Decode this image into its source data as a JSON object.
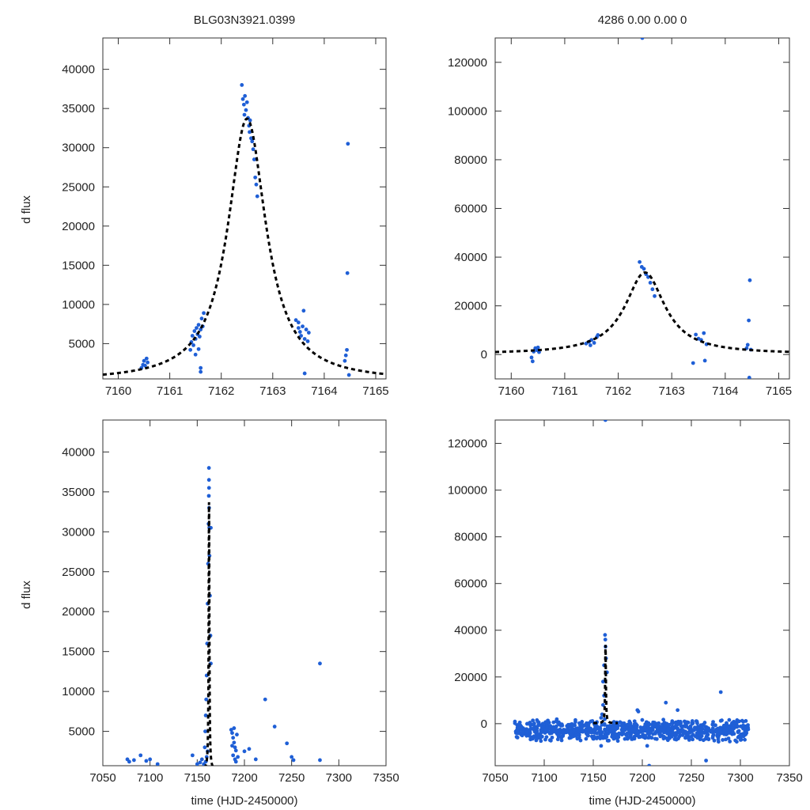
{
  "chart_data": [
    {
      "id": "top_left",
      "type": "scatter",
      "title": "BLG03N3921.0399",
      "xlabel": "",
      "ylabel": "d flux",
      "xlim": [
        7159.7,
        7165.2
      ],
      "ylim": [
        500,
        44000
      ],
      "xticks": [
        7160,
        7161,
        7162,
        7163,
        7164,
        7165
      ],
      "yticks": [
        5000,
        10000,
        15000,
        20000,
        25000,
        30000,
        35000,
        40000
      ],
      "series": [
        {
          "name": "data",
          "color": "#1f5fd6",
          "points": [
            [
              7160.45,
              1900
            ],
            [
              7160.48,
              2300
            ],
            [
              7160.5,
              2800
            ],
            [
              7160.52,
              2200
            ],
            [
              7160.55,
              3100
            ],
            [
              7160.57,
              2600
            ],
            [
              7161.4,
              4200
            ],
            [
              7161.42,
              5200
            ],
            [
              7161.44,
              6000
            ],
            [
              7161.46,
              4800
            ],
            [
              7161.48,
              6600
            ],
            [
              7161.5,
              5600
            ],
            [
              7161.52,
              7000
            ],
            [
              7161.54,
              6200
            ],
            [
              7161.56,
              7400
            ],
            [
              7161.58,
              5900
            ],
            [
              7161.6,
              6800
            ],
            [
              7161.62,
              8200
            ],
            [
              7161.64,
              7200
            ],
            [
              7161.66,
              8900
            ],
            [
              7161.5,
              3600
            ],
            [
              7161.56,
              4300
            ],
            [
              7161.6,
              1900
            ],
            [
              7161.6,
              1400
            ],
            [
              7162.4,
              38000
            ],
            [
              7162.42,
              36200
            ],
            [
              7162.44,
              35500
            ],
            [
              7162.46,
              36600
            ],
            [
              7162.48,
              34800
            ],
            [
              7162.5,
              35800
            ],
            [
              7162.52,
              33800
            ],
            [
              7162.54,
              32800
            ],
            [
              7162.56,
              33500
            ],
            [
              7162.58,
              31200
            ],
            [
              7162.6,
              30800
            ],
            [
              7162.62,
              29800
            ],
            [
              7162.64,
              28500
            ],
            [
              7162.66,
              26200
            ],
            [
              7162.68,
              25300
            ],
            [
              7162.7,
              23800
            ],
            [
              7162.45,
              34200
            ],
            [
              7162.55,
              32000
            ],
            [
              7163.45,
              8000
            ],
            [
              7163.5,
              7000
            ],
            [
              7163.53,
              6500
            ],
            [
              7163.55,
              6000
            ],
            [
              7163.58,
              7200
            ],
            [
              7163.6,
              9200
            ],
            [
              7163.62,
              5600
            ],
            [
              7163.65,
              6800
            ],
            [
              7163.68,
              5300
            ],
            [
              7163.7,
              6400
            ],
            [
              7163.62,
              1200
            ],
            [
              7163.5,
              7700
            ],
            [
              7164.4,
              2800
            ],
            [
              7164.42,
              3500
            ],
            [
              7164.44,
              4200
            ],
            [
              7164.45,
              14000
            ],
            [
              7164.46,
              30500
            ],
            [
              7164.48,
              1000
            ]
          ]
        },
        {
          "name": "model",
          "style": "dashed",
          "color": "#000000",
          "model": {
            "t0": 7162.5,
            "peak": 33500,
            "tE": 0.45,
            "base": 200,
            "from": 7159.7,
            "to": 7165.2
          }
        }
      ]
    },
    {
      "id": "top_right",
      "type": "scatter",
      "title": "4286  0.00  0.00  0",
      "xlabel": "",
      "ylabel": "",
      "xlim": [
        7159.7,
        7165.2
      ],
      "ylim": [
        -10000,
        130000
      ],
      "xticks": [
        7160,
        7161,
        7162,
        7163,
        7164,
        7165
      ],
      "yticks": [
        0,
        20000,
        40000,
        60000,
        80000,
        100000,
        120000
      ],
      "series": [
        {
          "name": "data",
          "color": "#1f5fd6",
          "points": [
            [
              7160.38,
              -1200
            ],
            [
              7160.4,
              -2800
            ],
            [
              7160.42,
              1200
            ],
            [
              7160.45,
              2600
            ],
            [
              7160.48,
              1800
            ],
            [
              7160.5,
              2900
            ],
            [
              7160.52,
              1000
            ],
            [
              7161.4,
              4500
            ],
            [
              7161.45,
              5200
            ],
            [
              7161.5,
              6000
            ],
            [
              7161.55,
              4800
            ],
            [
              7161.6,
              7200
            ],
            [
              7161.62,
              8000
            ],
            [
              7161.48,
              3800
            ],
            [
              7162.4,
              38000
            ],
            [
              7162.44,
              36000
            ],
            [
              7162.48,
              35200
            ],
            [
              7162.52,
              33000
            ],
            [
              7162.56,
              31800
            ],
            [
              7162.6,
              29500
            ],
            [
              7162.64,
              26800
            ],
            [
              7162.68,
              24000
            ],
            [
              7163.4,
              -3500
            ],
            [
              7163.45,
              8200
            ],
            [
              7163.5,
              6500
            ],
            [
              7163.55,
              6000
            ],
            [
              7163.6,
              8800
            ],
            [
              7163.65,
              4200
            ],
            [
              7163.62,
              -2500
            ],
            [
              7164.4,
              2600
            ],
            [
              7164.42,
              4000
            ],
            [
              7164.44,
              14000
            ],
            [
              7164.46,
              30500
            ],
            [
              7164.45,
              -9500
            ],
            [
              7164.48,
              2000
            ],
            [
              7162.45,
              130000
            ]
          ]
        },
        {
          "name": "model",
          "style": "dashed",
          "color": "#000000",
          "model": {
            "t0": 7162.5,
            "peak": 33500,
            "tE": 0.45,
            "base": 200,
            "from": 7159.7,
            "to": 7165.2
          }
        }
      ]
    },
    {
      "id": "bottom_left",
      "type": "scatter",
      "title": "",
      "xlabel": "time (HJD-2450000)",
      "ylabel": "d flux",
      "xlim": [
        7050,
        7350
      ],
      "ylim": [
        700,
        44000
      ],
      "xticks": [
        7050,
        7100,
        7150,
        7200,
        7250,
        7300,
        7350
      ],
      "yticks": [
        5000,
        10000,
        15000,
        20000,
        25000,
        30000,
        35000,
        40000
      ],
      "series": [
        {
          "name": "data",
          "color": "#1f5fd6",
          "points": [
            [
              7076,
              1500
            ],
            [
              7078,
              1200
            ],
            [
              7083,
              1400
            ],
            [
              7090,
              2000
            ],
            [
              7096,
              1300
            ],
            [
              7100,
              1500
            ],
            [
              7108,
              900
            ],
            [
              7145,
              2000
            ],
            [
              7150,
              900
            ],
            [
              7153,
              1100
            ],
            [
              7155,
              1500
            ],
            [
              7158,
              3000
            ],
            [
              7158.5,
              5000
            ],
            [
              7159,
              7000
            ],
            [
              7159.5,
              9000
            ],
            [
              7160,
              12000
            ],
            [
              7160.5,
              16000
            ],
            [
              7161,
              21000
            ],
            [
              7161.5,
              26000
            ],
            [
              7162,
              31000
            ],
            [
              7162.3,
              34500
            ],
            [
              7162.4,
              38000
            ],
            [
              7162.45,
              36500
            ],
            [
              7162.5,
              35500
            ],
            [
              7162.6,
              33000
            ],
            [
              7162.8,
              30500
            ],
            [
              7163,
              27000
            ],
            [
              7163.5,
              22000
            ],
            [
              7164,
              17000
            ],
            [
              7164.4,
              30500
            ],
            [
              7164.4,
              13500
            ],
            [
              7161,
              2500
            ],
            [
              7160,
              1800
            ],
            [
              7159,
              1200
            ],
            [
              7157,
              900
            ],
            [
              7186,
              5200
            ],
            [
              7187,
              4800
            ],
            [
              7188,
              4200
            ],
            [
              7189,
              3600
            ],
            [
              7190,
              3000
            ],
            [
              7191,
              2600
            ],
            [
              7188,
              2000
            ],
            [
              7190,
              1500
            ],
            [
              7192,
              4600
            ],
            [
              7189,
              5400
            ],
            [
              7187,
              3200
            ],
            [
              7191,
              1200
            ],
            [
              7193,
              1800
            ],
            [
              7200,
              2500
            ],
            [
              7205,
              2800
            ],
            [
              7212,
              1500
            ],
            [
              7222,
              9000
            ],
            [
              7232,
              5600
            ],
            [
              7245,
              3500
            ],
            [
              7250,
              1800
            ],
            [
              7252,
              1400
            ],
            [
              7280,
              13500
            ],
            [
              7280,
              1400
            ]
          ]
        },
        {
          "name": "model",
          "style": "dashed",
          "color": "#000000",
          "model": {
            "t0": 7162.5,
            "peak": 33500,
            "tE": 0.45,
            "base": 200,
            "from": 7150,
            "to": 7175
          }
        }
      ]
    },
    {
      "id": "bottom_right",
      "type": "scatter",
      "title": "",
      "xlabel": "time (HJD-2450000)",
      "ylabel": "",
      "xlim": [
        7050,
        7350
      ],
      "ylim": [
        -18000,
        130000
      ],
      "xticks": [
        7050,
        7100,
        7150,
        7200,
        7250,
        7300,
        7350
      ],
      "yticks": [
        0,
        20000,
        40000,
        60000,
        80000,
        100000,
        120000
      ],
      "series": [
        {
          "name": "data",
          "color": "#1f5fd6",
          "baseline_band": {
            "from": 7070,
            "to": 7308,
            "min": -8000,
            "max": 2000
          },
          "points": [
            [
              7162,
              38000
            ],
            [
              7162.3,
              36000
            ],
            [
              7162.5,
              33000
            ],
            [
              7161,
              25000
            ],
            [
              7160,
              18000
            ],
            [
              7163,
              28000
            ],
            [
              7164,
              22000
            ],
            [
              7161,
              12000
            ],
            [
              7160,
              8000
            ],
            [
              7159,
              4000
            ],
            [
              7158,
              -9500
            ],
            [
              7158,
              2500
            ],
            [
              7195,
              5800
            ],
            [
              7196,
              5200
            ],
            [
              7224,
              9000
            ],
            [
              7236,
              5800
            ],
            [
              7280,
              13500
            ],
            [
              7162.4,
              130000
            ],
            [
              7207,
              -18000
            ],
            [
              7265,
              -15800
            ],
            [
              7205,
              -9500
            ]
          ]
        },
        {
          "name": "model",
          "style": "dashed",
          "color": "#000000",
          "model": {
            "t0": 7162.5,
            "peak": 33500,
            "tE": 0.45,
            "base": 200,
            "from": 7150,
            "to": 7175
          }
        }
      ]
    }
  ]
}
